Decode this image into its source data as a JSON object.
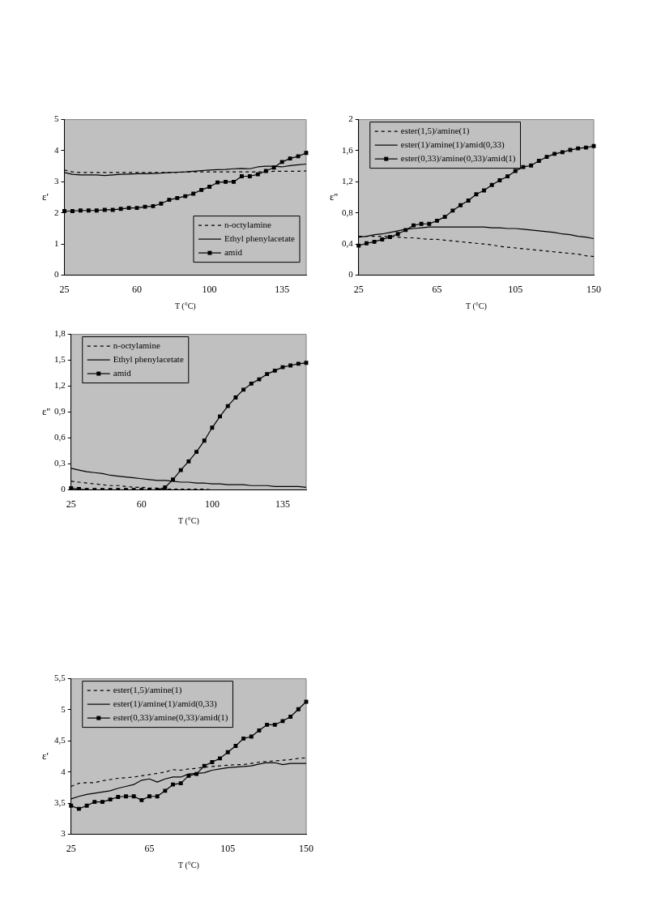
{
  "chart_data": [
    {
      "type": "line",
      "xlabel": "T (°C)",
      "ylabel": "ε'",
      "categories": [
        "25",
        null,
        null,
        null,
        null,
        null,
        null,
        null,
        null,
        "60",
        null,
        null,
        null,
        null,
        null,
        null,
        null,
        null,
        "100",
        null,
        null,
        null,
        null,
        null,
        null,
        null,
        null,
        "135",
        null,
        null,
        null
      ],
      "ylim": [
        0,
        5
      ],
      "yticks": [
        0,
        1,
        2,
        3,
        4,
        5
      ],
      "legend": "bottom right",
      "grid": false,
      "series": [
        {
          "name": "n-octylamine",
          "color": "#000000",
          "line_style": "dashed",
          "marker": "none",
          "values": [
            3.38,
            3.32,
            3.3,
            3.3,
            3.3,
            3.3,
            3.3,
            3.3,
            3.3,
            3.3,
            3.3,
            3.3,
            3.3,
            3.3,
            3.3,
            3.32,
            3.32,
            3.32,
            3.32,
            3.32,
            3.32,
            3.32,
            3.32,
            3.32,
            3.32,
            3.32,
            3.34,
            3.34,
            3.34,
            3.34,
            3.35
          ]
        },
        {
          "name": "Ethyl phenylacetate",
          "color": "#000000",
          "line_style": "solid",
          "marker": "none",
          "values": [
            3.3,
            3.24,
            3.22,
            3.22,
            3.22,
            3.2,
            3.22,
            3.24,
            3.25,
            3.26,
            3.26,
            3.27,
            3.28,
            3.3,
            3.31,
            3.32,
            3.34,
            3.36,
            3.38,
            3.39,
            3.4,
            3.42,
            3.43,
            3.42,
            3.48,
            3.5,
            3.5,
            3.48,
            3.52,
            3.55,
            3.57
          ]
        },
        {
          "name": "amid",
          "color": "#000000",
          "line_style": "solid",
          "marker": "square",
          "values": [
            2.06,
            2.06,
            2.08,
            2.08,
            2.08,
            2.1,
            2.1,
            2.13,
            2.16,
            2.16,
            2.2,
            2.22,
            2.3,
            2.42,
            2.48,
            2.54,
            2.62,
            2.74,
            2.84,
            2.98,
            3.0,
            3.0,
            3.18,
            3.18,
            3.24,
            3.35,
            3.46,
            3.64,
            3.75,
            3.82,
            3.93
          ]
        }
      ]
    },
    {
      "type": "line",
      "xlabel": "T (°C)",
      "ylabel": "ε''",
      "categories": [
        "25",
        null,
        null,
        null,
        null,
        null,
        null,
        null,
        null,
        null,
        "65",
        null,
        null,
        null,
        null,
        null,
        null,
        null,
        null,
        null,
        "105",
        null,
        null,
        null,
        null,
        null,
        null,
        null,
        null,
        null,
        "150"
      ],
      "ylim": [
        0,
        2
      ],
      "yticks": [
        0,
        {
          "value": 0.4,
          "label": "0,4"
        },
        {
          "value": 0.8,
          "label": "0,8"
        },
        {
          "value": 1.2,
          "label": "1,2"
        },
        {
          "value": 1.6,
          "label": "1,6"
        },
        2
      ],
      "legend": "top left",
      "grid": false,
      "series": [
        {
          "name": "ester(1,5)/amine(1)",
          "color": "#000000",
          "line_style": "dashed",
          "marker": "none",
          "values": [
            0.5,
            0.5,
            0.5,
            0.5,
            0.5,
            0.49,
            0.48,
            0.48,
            0.47,
            0.46,
            0.46,
            0.45,
            0.44,
            0.43,
            0.42,
            0.41,
            0.4,
            0.39,
            0.37,
            0.36,
            0.35,
            0.34,
            0.33,
            0.32,
            0.31,
            0.3,
            0.29,
            0.28,
            0.27,
            0.25,
            0.24
          ]
        },
        {
          "name": "ester(1)/amine(1)/amid(0,33)",
          "color": "#000000",
          "line_style": "solid",
          "marker": "none",
          "values": [
            0.49,
            0.5,
            0.52,
            0.53,
            0.55,
            0.57,
            0.59,
            0.6,
            0.61,
            0.62,
            0.62,
            0.62,
            0.62,
            0.62,
            0.62,
            0.62,
            0.62,
            0.61,
            0.61,
            0.6,
            0.6,
            0.59,
            0.58,
            0.57,
            0.56,
            0.55,
            0.53,
            0.52,
            0.5,
            0.49,
            0.47
          ]
        },
        {
          "name": "ester(0,33)/amine(0,33)/amid(1)",
          "color": "#000000",
          "line_style": "solid",
          "marker": "square",
          "values": [
            0.38,
            0.41,
            0.43,
            0.46,
            0.49,
            0.53,
            0.58,
            0.64,
            0.66,
            0.66,
            0.7,
            0.75,
            0.83,
            0.9,
            0.96,
            1.04,
            1.09,
            1.16,
            1.22,
            1.27,
            1.34,
            1.39,
            1.41,
            1.47,
            1.52,
            1.56,
            1.58,
            1.61,
            1.63,
            1.64,
            1.66
          ]
        }
      ]
    },
    {
      "type": "line",
      "xlabel": "T (°C)",
      "ylabel": "ε''",
      "categories": [
        "25",
        null,
        null,
        null,
        null,
        null,
        null,
        null,
        null,
        "60",
        null,
        null,
        null,
        null,
        null,
        null,
        null,
        null,
        "100",
        null,
        null,
        null,
        null,
        null,
        null,
        null,
        null,
        "135",
        null,
        null,
        null
      ],
      "ylim": [
        0,
        1.8
      ],
      "yticks": [
        0,
        {
          "value": 0.3,
          "label": "0,3"
        },
        {
          "value": 0.6,
          "label": "0,6"
        },
        {
          "value": 0.9,
          "label": "0,9"
        },
        {
          "value": 1.2,
          "label": "1,2"
        },
        {
          "value": 1.5,
          "label": "1,5"
        },
        {
          "value": 1.8,
          "label": "1,8"
        }
      ],
      "legend": "top left",
      "grid": false,
      "series": [
        {
          "name": "n-octylamine",
          "color": "#000000",
          "line_style": "dashed",
          "marker": "none",
          "values": [
            0.1,
            0.09,
            0.08,
            0.07,
            0.06,
            0.05,
            0.05,
            0.04,
            0.03,
            0.03,
            0.02,
            0.02,
            0.01,
            0.01,
            0.01,
            0.01,
            0.01,
            0.01,
            0,
            0,
            0,
            0,
            0,
            0,
            0,
            0,
            0,
            0,
            0,
            0,
            0
          ]
        },
        {
          "name": "Ethyl phenylacetate",
          "color": "#000000",
          "line_style": "solid",
          "marker": "none",
          "values": [
            0.25,
            0.23,
            0.21,
            0.2,
            0.19,
            0.17,
            0.16,
            0.15,
            0.14,
            0.13,
            0.12,
            0.11,
            0.11,
            0.1,
            0.09,
            0.09,
            0.08,
            0.08,
            0.07,
            0.07,
            0.06,
            0.06,
            0.06,
            0.05,
            0.05,
            0.05,
            0.04,
            0.04,
            0.04,
            0.04,
            0.03
          ]
        },
        {
          "name": "amid",
          "color": "#000000",
          "line_style": "solid",
          "marker": "square",
          "values": [
            0.02,
            0.01,
            0,
            0,
            0,
            0,
            0,
            0,
            0,
            0,
            0,
            0,
            0.03,
            0.12,
            0.23,
            0.33,
            0.44,
            0.57,
            0.72,
            0.85,
            0.97,
            1.07,
            1.16,
            1.23,
            1.28,
            1.34,
            1.38,
            1.42,
            1.44,
            1.46,
            1.47
          ]
        }
      ]
    },
    {
      "type": "line",
      "xlabel": "T (°C)",
      "ylabel": "ε'",
      "categories": [
        "25",
        null,
        null,
        null,
        null,
        null,
        null,
        null,
        null,
        null,
        "65",
        null,
        null,
        null,
        null,
        null,
        null,
        null,
        null,
        null,
        "105",
        null,
        null,
        null,
        null,
        null,
        null,
        null,
        null,
        null,
        "150"
      ],
      "ylim": [
        3,
        5.5
      ],
      "yticks": [
        3,
        {
          "value": 3.5,
          "label": "3,5"
        },
        4,
        {
          "value": 4.5,
          "label": "4,5"
        },
        5,
        {
          "value": 5.5,
          "label": "5,5"
        }
      ],
      "legend": "top left",
      "grid": false,
      "series": [
        {
          "name": "ester(1,5)/amine(1)",
          "color": "#000000",
          "line_style": "dashed",
          "marker": "none",
          "values": [
            3.77,
            3.82,
            3.83,
            3.83,
            3.86,
            3.88,
            3.9,
            3.91,
            3.92,
            3.94,
            3.96,
            3.98,
            4.0,
            4.04,
            4.03,
            4.05,
            4.06,
            4.08,
            4.09,
            4.1,
            4.11,
            4.12,
            4.12,
            4.14,
            4.16,
            4.17,
            4.18,
            4.19,
            4.2,
            4.22,
            4.23
          ]
        },
        {
          "name": "ester(1)/amine(1)/amid(0,33)",
          "color": "#000000",
          "line_style": "solid",
          "marker": "none",
          "values": [
            3.57,
            3.61,
            3.64,
            3.66,
            3.68,
            3.7,
            3.74,
            3.77,
            3.8,
            3.87,
            3.89,
            3.84,
            3.89,
            3.92,
            3.92,
            3.97,
            3.98,
            3.99,
            4.03,
            4.05,
            4.07,
            4.08,
            4.09,
            4.1,
            4.13,
            4.15,
            4.15,
            4.12,
            4.14,
            4.14,
            4.14
          ]
        },
        {
          "name": "ester(0,33)/amine(0,33)/amid(1)",
          "color": "#000000",
          "line_style": "solid",
          "marker": "square",
          "values": [
            3.46,
            3.41,
            3.46,
            3.52,
            3.52,
            3.56,
            3.6,
            3.61,
            3.61,
            3.55,
            3.61,
            3.61,
            3.7,
            3.8,
            3.82,
            3.94,
            3.97,
            4.1,
            4.16,
            4.22,
            4.32,
            4.42,
            4.54,
            4.57,
            4.67,
            4.76,
            4.76,
            4.82,
            4.89,
            5.01,
            5.13
          ]
        }
      ]
    }
  ]
}
